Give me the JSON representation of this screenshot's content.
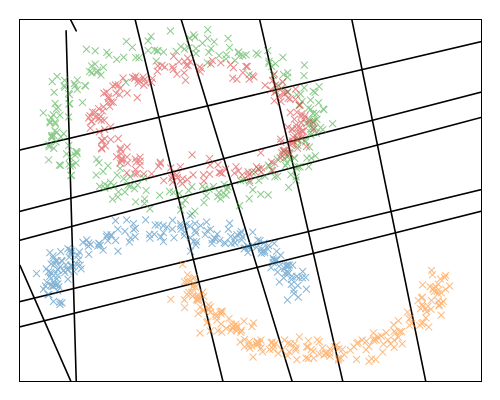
{
  "chart_data": {
    "type": "scatter",
    "title": "",
    "xlabel": "",
    "ylabel": "",
    "xlim": [
      0,
      1
    ],
    "ylim": [
      0,
      1
    ],
    "grid": false,
    "axis_ticks": false,
    "marker": "x",
    "background_lines": [
      {
        "x1": 0.11,
        "y1": 1.0,
        "x2": 0.122,
        "y2": 0.97
      },
      {
        "x1": 0.1,
        "y1": 0.97,
        "x2": 0.122,
        "y2": 0.0
      },
      {
        "x1": 0.25,
        "y1": 1.0,
        "x2": 0.44,
        "y2": 0.0
      },
      {
        "x1": 0.35,
        "y1": 1.0,
        "x2": 0.59,
        "y2": 0.0
      },
      {
        "x1": 0.52,
        "y1": 1.0,
        "x2": 0.7,
        "y2": 0.0
      },
      {
        "x1": 0.72,
        "y1": 1.0,
        "x2": 0.88,
        "y2": 0.0
      },
      {
        "x1": 0.0,
        "y1": 0.32,
        "x2": 0.11,
        "y2": 0.0
      },
      {
        "x1": 0.0,
        "y1": 0.64,
        "x2": 1.0,
        "y2": 0.94
      },
      {
        "x1": 0.0,
        "y1": 0.47,
        "x2": 1.0,
        "y2": 0.8
      },
      {
        "x1": 0.0,
        "y1": 0.39,
        "x2": 1.0,
        "y2": 0.73
      },
      {
        "x1": 0.0,
        "y1": 0.22,
        "x2": 1.0,
        "y2": 0.53
      },
      {
        "x1": 0.0,
        "y1": 0.15,
        "x2": 1.0,
        "y2": 0.47
      }
    ],
    "series": [
      {
        "shape": "ellipse",
        "color": "#2ca02c",
        "center": [
          0.36,
          0.72
        ],
        "radii": [
          0.28,
          0.21
        ],
        "count": 260,
        "jitter": 0.018
      },
      {
        "shape": "ellipse",
        "color": "#d62728",
        "center": [
          0.39,
          0.72
        ],
        "radii": [
          0.22,
          0.15
        ],
        "count": 220,
        "jitter": 0.014
      },
      {
        "shape": "arc",
        "color": "#1f77b4",
        "center": [
          0.33,
          0.24
        ],
        "radii": [
          0.27,
          0.18
        ],
        "angle_range": [
          0,
          180
        ],
        "count": 200,
        "jitter": 0.016
      },
      {
        "shape": "arc",
        "color": "#ff7f0e",
        "center": [
          0.64,
          0.29
        ],
        "radii": [
          0.27,
          0.21
        ],
        "angle_range": [
          180,
          360
        ],
        "count": 200,
        "jitter": 0.016
      }
    ]
  }
}
